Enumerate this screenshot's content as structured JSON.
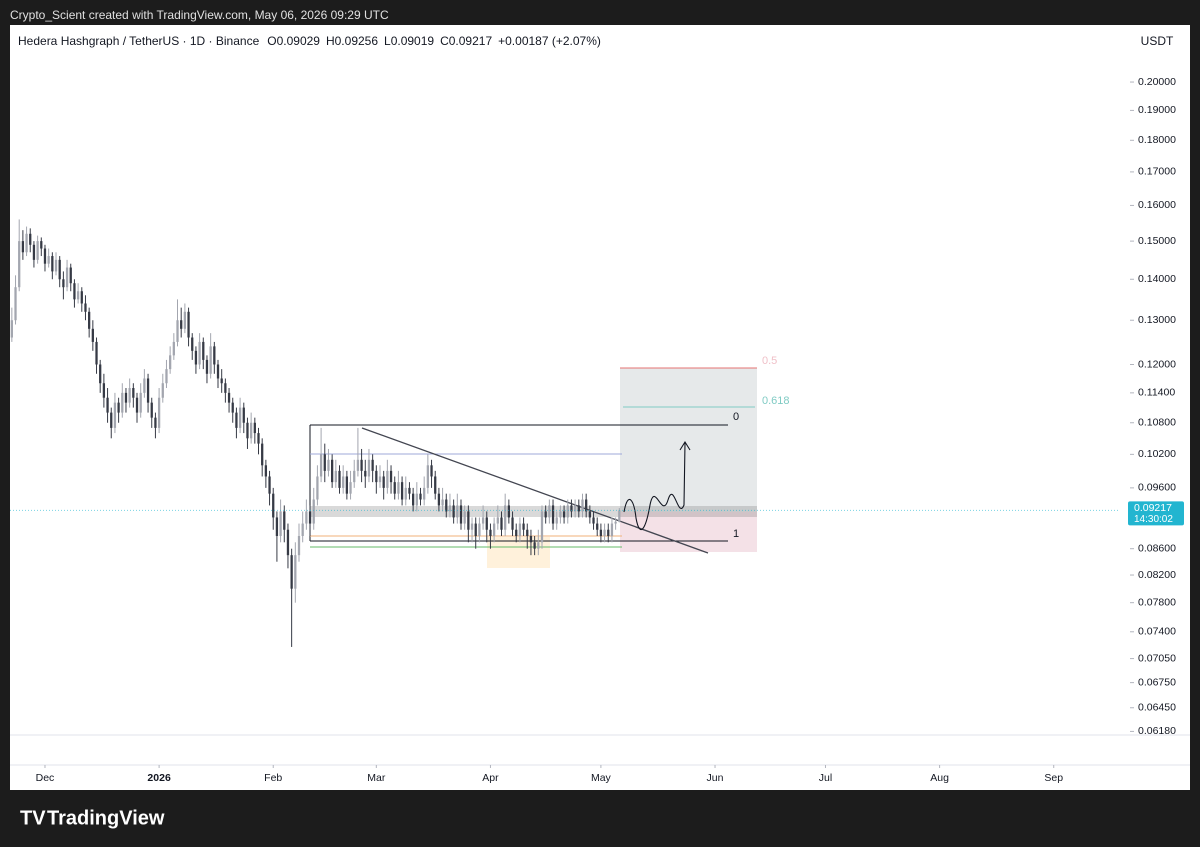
{
  "header": "Crypto_Scient created with TradingView.com, May 06, 2026 09:29 UTC",
  "footer_logo": "TradingView",
  "chart_data": {
    "type": "candlestick",
    "symbol": "Hedera Hashgraph / TetherUS · 1D · Binance",
    "ohlc_legend": [
      "O0.09029",
      "H0.09256",
      "L0.09019",
      "C0.09217"
    ],
    "change": "+0.00187 (+2.07%)",
    "currency": "USDT",
    "log_scale": true,
    "grid": false,
    "colors": {
      "up": "#a3a6af",
      "down": "#363a45",
      "last_price": "#22b5d0"
    },
    "candles": [
      [
        0.126,
        0.133,
        0.125,
        0.13
      ],
      [
        0.13,
        0.141,
        0.129,
        0.138
      ],
      [
        0.138,
        0.156,
        0.137,
        0.15
      ],
      [
        0.15,
        0.153,
        0.145,
        0.147
      ],
      [
        0.147,
        0.154,
        0.146,
        0.152
      ],
      [
        0.152,
        0.1535,
        0.147,
        0.149
      ],
      [
        0.149,
        0.15,
        0.143,
        0.145
      ],
      [
        0.145,
        0.1515,
        0.144,
        0.15
      ],
      [
        0.15,
        0.151,
        0.146,
        0.148
      ],
      [
        0.148,
        0.149,
        0.142,
        0.144
      ],
      [
        0.144,
        0.148,
        0.143,
        0.146
      ],
      [
        0.146,
        0.147,
        0.14,
        0.142
      ],
      [
        0.142,
        0.147,
        0.141,
        0.145
      ],
      [
        0.145,
        0.146,
        0.138,
        0.14
      ],
      [
        0.14,
        0.142,
        0.135,
        0.138
      ],
      [
        0.138,
        0.145,
        0.137,
        0.143
      ],
      [
        0.143,
        0.144,
        0.137,
        0.139
      ],
      [
        0.139,
        0.14,
        0.133,
        0.135
      ],
      [
        0.135,
        0.139,
        0.134,
        0.137
      ],
      [
        0.137,
        0.138,
        0.132,
        0.134
      ],
      [
        0.134,
        0.136,
        0.13,
        0.132
      ],
      [
        0.132,
        0.133,
        0.126,
        0.128
      ],
      [
        0.128,
        0.13,
        0.123,
        0.125
      ],
      [
        0.125,
        0.126,
        0.118,
        0.12
      ],
      [
        0.12,
        0.121,
        0.114,
        0.116
      ],
      [
        0.116,
        0.118,
        0.111,
        0.113
      ],
      [
        0.113,
        0.115,
        0.108,
        0.11
      ],
      [
        0.11,
        0.111,
        0.105,
        0.107
      ],
      [
        0.107,
        0.114,
        0.106,
        0.112
      ],
      [
        0.112,
        0.113,
        0.108,
        0.11
      ],
      [
        0.11,
        0.116,
        0.109,
        0.114
      ],
      [
        0.114,
        0.115,
        0.11,
        0.112
      ],
      [
        0.112,
        0.117,
        0.111,
        0.115
      ],
      [
        0.115,
        0.116,
        0.111,
        0.113
      ],
      [
        0.113,
        0.114,
        0.108,
        0.11
      ],
      [
        0.11,
        0.116,
        0.109,
        0.114
      ],
      [
        0.114,
        0.119,
        0.113,
        0.117
      ],
      [
        0.117,
        0.118,
        0.11,
        0.112
      ],
      [
        0.112,
        0.113,
        0.107,
        0.109
      ],
      [
        0.109,
        0.11,
        0.105,
        0.107
      ],
      [
        0.107,
        0.115,
        0.106,
        0.113
      ],
      [
        0.113,
        0.118,
        0.112,
        0.116
      ],
      [
        0.116,
        0.121,
        0.115,
        0.119
      ],
      [
        0.119,
        0.124,
        0.118,
        0.122
      ],
      [
        0.122,
        0.127,
        0.121,
        0.125
      ],
      [
        0.125,
        0.135,
        0.124,
        0.13
      ],
      [
        0.13,
        0.133,
        0.126,
        0.128
      ],
      [
        0.128,
        0.134,
        0.127,
        0.132
      ],
      [
        0.132,
        0.133,
        0.124,
        0.126
      ],
      [
        0.126,
        0.127,
        0.121,
        0.123
      ],
      [
        0.123,
        0.124,
        0.118,
        0.12
      ],
      [
        0.12,
        0.127,
        0.119,
        0.125
      ],
      [
        0.125,
        0.126,
        0.119,
        0.121
      ],
      [
        0.121,
        0.122,
        0.116,
        0.118
      ],
      [
        0.118,
        0.127,
        0.117,
        0.124
      ],
      [
        0.124,
        0.125,
        0.118,
        0.12
      ],
      [
        0.12,
        0.121,
        0.115,
        0.117
      ],
      [
        0.117,
        0.119,
        0.114,
        0.116
      ],
      [
        0.116,
        0.117,
        0.112,
        0.114
      ],
      [
        0.114,
        0.115,
        0.11,
        0.112
      ],
      [
        0.112,
        0.113,
        0.108,
        0.11
      ],
      [
        0.11,
        0.111,
        0.105,
        0.107
      ],
      [
        0.107,
        0.113,
        0.106,
        0.111
      ],
      [
        0.111,
        0.112,
        0.106,
        0.108
      ],
      [
        0.108,
        0.109,
        0.103,
        0.105
      ],
      [
        0.105,
        0.11,
        0.104,
        0.108
      ],
      [
        0.108,
        0.109,
        0.104,
        0.106
      ],
      [
        0.106,
        0.107,
        0.102,
        0.104
      ],
      [
        0.104,
        0.105,
        0.098,
        0.1
      ],
      [
        0.1,
        0.101,
        0.096,
        0.098
      ],
      [
        0.098,
        0.099,
        0.093,
        0.095
      ],
      [
        0.095,
        0.096,
        0.089,
        0.091
      ],
      [
        0.091,
        0.092,
        0.084,
        0.088
      ],
      [
        0.088,
        0.094,
        0.087,
        0.092
      ],
      [
        0.092,
        0.093,
        0.087,
        0.089
      ],
      [
        0.089,
        0.09,
        0.083,
        0.085
      ],
      [
        0.085,
        0.086,
        0.072,
        0.08
      ],
      [
        0.08,
        0.087,
        0.078,
        0.085
      ],
      [
        0.085,
        0.09,
        0.084,
        0.088
      ],
      [
        0.088,
        0.092,
        0.087,
        0.09
      ],
      [
        0.09,
        0.094,
        0.089,
        0.092
      ],
      [
        0.092,
        0.093,
        0.088,
        0.09
      ],
      [
        0.09,
        0.096,
        0.089,
        0.094
      ],
      [
        0.094,
        0.1,
        0.093,
        0.098
      ],
      [
        0.098,
        0.107,
        0.097,
        0.102
      ],
      [
        0.102,
        0.104,
        0.097,
        0.099
      ],
      [
        0.099,
        0.103,
        0.098,
        0.101
      ],
      [
        0.101,
        0.102,
        0.096,
        0.097
      ],
      [
        0.097,
        0.101,
        0.096,
        0.099
      ],
      [
        0.099,
        0.1,
        0.095,
        0.096
      ],
      [
        0.096,
        0.1,
        0.095,
        0.098
      ],
      [
        0.098,
        0.099,
        0.094,
        0.095
      ],
      [
        0.095,
        0.099,
        0.094,
        0.097
      ],
      [
        0.097,
        0.101,
        0.096,
        0.099
      ],
      [
        0.099,
        0.107,
        0.098,
        0.101
      ],
      [
        0.101,
        0.103,
        0.097,
        0.099
      ],
      [
        0.099,
        0.101,
        0.096,
        0.098
      ],
      [
        0.098,
        0.103,
        0.097,
        0.101
      ],
      [
        0.101,
        0.102,
        0.097,
        0.099
      ],
      [
        0.099,
        0.1,
        0.095,
        0.097
      ],
      [
        0.097,
        0.1,
        0.096,
        0.098
      ],
      [
        0.098,
        0.099,
        0.094,
        0.096
      ],
      [
        0.096,
        0.101,
        0.095,
        0.099
      ],
      [
        0.099,
        0.1,
        0.095,
        0.097
      ],
      [
        0.097,
        0.098,
        0.094,
        0.095
      ],
      [
        0.095,
        0.099,
        0.094,
        0.097
      ],
      [
        0.097,
        0.098,
        0.093,
        0.094
      ],
      [
        0.094,
        0.098,
        0.093,
        0.096
      ],
      [
        0.096,
        0.097,
        0.094,
        0.095
      ],
      [
        0.095,
        0.096,
        0.092,
        0.093
      ],
      [
        0.093,
        0.097,
        0.092,
        0.095
      ],
      [
        0.095,
        0.096,
        0.093,
        0.094
      ],
      [
        0.094,
        0.098,
        0.093,
        0.096
      ],
      [
        0.096,
        0.102,
        0.095,
        0.1
      ],
      [
        0.1,
        0.101,
        0.096,
        0.098
      ],
      [
        0.098,
        0.099,
        0.094,
        0.095
      ],
      [
        0.095,
        0.096,
        0.092,
        0.093
      ],
      [
        0.093,
        0.096,
        0.092,
        0.094
      ],
      [
        0.094,
        0.095,
        0.091,
        0.092
      ],
      [
        0.092,
        0.095,
        0.091,
        0.093
      ],
      [
        0.093,
        0.094,
        0.09,
        0.091
      ],
      [
        0.091,
        0.095,
        0.09,
        0.093
      ],
      [
        0.093,
        0.094,
        0.089,
        0.09
      ],
      [
        0.09,
        0.093,
        0.089,
        0.092
      ],
      [
        0.092,
        0.093,
        0.087,
        0.089
      ],
      [
        0.089,
        0.091,
        0.087,
        0.09
      ],
      [
        0.09,
        0.091,
        0.086,
        0.088
      ],
      [
        0.088,
        0.091,
        0.087,
        0.09
      ],
      [
        0.09,
        0.093,
        0.089,
        0.091
      ],
      [
        0.091,
        0.092,
        0.087,
        0.089
      ],
      [
        0.089,
        0.09,
        0.086,
        0.088
      ],
      [
        0.088,
        0.091,
        0.087,
        0.09
      ],
      [
        0.09,
        0.093,
        0.089,
        0.091
      ],
      [
        0.091,
        0.092,
        0.088,
        0.089
      ],
      [
        0.089,
        0.095,
        0.088,
        0.093
      ],
      [
        0.093,
        0.094,
        0.09,
        0.091
      ],
      [
        0.091,
        0.092,
        0.088,
        0.089
      ],
      [
        0.089,
        0.09,
        0.087,
        0.088
      ],
      [
        0.088,
        0.091,
        0.087,
        0.09
      ],
      [
        0.09,
        0.091,
        0.088,
        0.089
      ],
      [
        0.089,
        0.09,
        0.086,
        0.088
      ],
      [
        0.088,
        0.089,
        0.085,
        0.087
      ],
      [
        0.087,
        0.088,
        0.085,
        0.086
      ],
      [
        0.086,
        0.089,
        0.085,
        0.087
      ],
      [
        0.087,
        0.093,
        0.086,
        0.092
      ],
      [
        0.092,
        0.093,
        0.09,
        0.091
      ],
      [
        0.091,
        0.094,
        0.09,
        0.093
      ],
      [
        0.093,
        0.094,
        0.089,
        0.09
      ],
      [
        0.09,
        0.092,
        0.089,
        0.091
      ],
      [
        0.091,
        0.093,
        0.09,
        0.092
      ],
      [
        0.092,
        0.093,
        0.09,
        0.091
      ],
      [
        0.091,
        0.094,
        0.09,
        0.093
      ],
      [
        0.093,
        0.094,
        0.091,
        0.092
      ],
      [
        0.092,
        0.094,
        0.091,
        0.093
      ],
      [
        0.093,
        0.094,
        0.091,
        0.092
      ],
      [
        0.092,
        0.095,
        0.091,
        0.094
      ],
      [
        0.094,
        0.095,
        0.091,
        0.092
      ],
      [
        0.092,
        0.093,
        0.09,
        0.091
      ],
      [
        0.091,
        0.092,
        0.089,
        0.09
      ],
      [
        0.09,
        0.091,
        0.088,
        0.089
      ],
      [
        0.089,
        0.09,
        0.087,
        0.088
      ],
      [
        0.088,
        0.09,
        0.087,
        0.089
      ],
      [
        0.089,
        0.09,
        0.087,
        0.088
      ],
      [
        0.088,
        0.091,
        0.087,
        0.09
      ],
      [
        0.09,
        0.091,
        0.089,
        0.0903
      ],
      [
        0.09029,
        0.09256,
        0.09019,
        0.09217
      ]
    ],
    "xlim": [
      -0.5,
      301
    ],
    "xticks": [
      {
        "value": 9,
        "label": "Dec"
      },
      {
        "value": 40,
        "label": "2026"
      },
      {
        "value": 71,
        "label": "Feb"
      },
      {
        "value": 99,
        "label": "Mar"
      },
      {
        "value": 130,
        "label": "Apr"
      },
      {
        "value": 160,
        "label": "May"
      },
      {
        "value": 191,
        "label": "Jun"
      },
      {
        "value": 221,
        "label": "Jul"
      },
      {
        "value": 252,
        "label": "Aug"
      },
      {
        "value": 283,
        "label": "Sep"
      }
    ],
    "ylim": [
      0.0614,
      0.2127
    ],
    "yticks": [
      {
        "value": 0.2,
        "label": "0.20000"
      },
      {
        "value": 0.19,
        "label": "0.19000"
      },
      {
        "value": 0.18,
        "label": "0.18000"
      },
      {
        "value": 0.17,
        "label": "0.17000"
      },
      {
        "value": 0.16,
        "label": "0.16000"
      },
      {
        "value": 0.15,
        "label": "0.15000"
      },
      {
        "value": 0.14,
        "label": "0.14000"
      },
      {
        "value": 0.13,
        "label": "0.13000"
      },
      {
        "value": 0.12,
        "label": "0.12000"
      },
      {
        "value": 0.114,
        "label": "0.11400"
      },
      {
        "value": 0.108,
        "label": "0.10800"
      },
      {
        "value": 0.102,
        "label": "0.10200"
      },
      {
        "value": 0.096,
        "label": "0.09600"
      },
      {
        "value": 0.086,
        "label": "0.08600"
      },
      {
        "value": 0.082,
        "label": "0.08200"
      },
      {
        "value": 0.078,
        "label": "0.07800"
      },
      {
        "value": 0.074,
        "label": "0.07400"
      },
      {
        "value": 0.0705,
        "label": "0.07050"
      },
      {
        "value": 0.0675,
        "label": "0.06750"
      },
      {
        "value": 0.0645,
        "label": "0.06450"
      },
      {
        "value": 0.0618,
        "label": "0.06180"
      }
    ],
    "last_price": 0.09217,
    "countdown": "14:30:02",
    "annotations": [
      "0",
      "1",
      "0.618",
      "0.5"
    ]
  }
}
